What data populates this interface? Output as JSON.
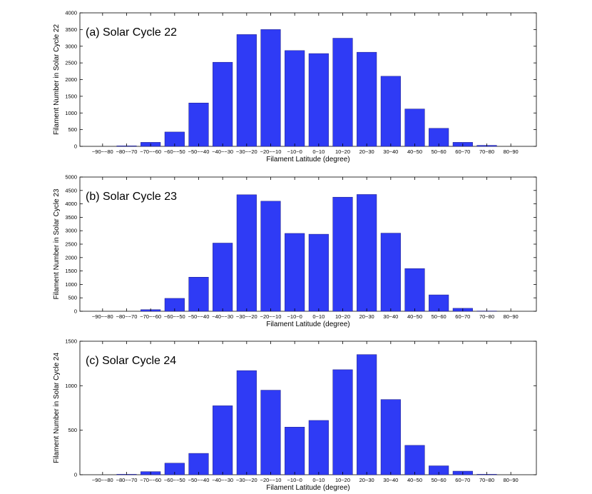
{
  "chart_data": [
    {
      "type": "bar",
      "title": "(a) Solar Cycle 22",
      "xlabel": "Filament Latitude (degree)",
      "ylabel": "Filament Number in Solar Cycle 22",
      "ylim": [
        0,
        4000
      ],
      "yticks": [
        0,
        500,
        1000,
        1500,
        2000,
        2500,
        3000,
        3500,
        4000
      ],
      "categories": [
        "-90--80",
        "-80--70",
        "-70--60",
        "-60--50",
        "-50--40",
        "-40--30",
        "-30--20",
        "-20--10",
        "-10-0",
        "0-10",
        "10-20",
        "20-30",
        "30-40",
        "40-50",
        "50-60",
        "60-70",
        "70-80",
        "80-90"
      ],
      "values": [
        0,
        15,
        120,
        430,
        1300,
        2520,
        3350,
        3500,
        2870,
        2780,
        3240,
        2820,
        2100,
        1120,
        540,
        120,
        30,
        0
      ],
      "color": "#2f3bf5"
    },
    {
      "type": "bar",
      "title": "(b) Solar Cycle 23",
      "xlabel": "Filament Latitude (degree)",
      "ylabel": "Filament Number in Solar Cycle 23",
      "ylim": [
        0,
        5000
      ],
      "yticks": [
        0,
        500,
        1000,
        1500,
        2000,
        2500,
        3000,
        3500,
        4000,
        4500,
        5000
      ],
      "categories": [
        "-90--80",
        "-80--70",
        "-70--60",
        "-60--50",
        "-50--40",
        "-40--30",
        "-30--20",
        "-20--10",
        "-10-0",
        "0-10",
        "10-20",
        "20-30",
        "30-40",
        "40-50",
        "50-60",
        "60-70",
        "70-80",
        "80-90"
      ],
      "values": [
        0,
        5,
        60,
        480,
        1270,
        2540,
        4340,
        4100,
        2900,
        2870,
        4250,
        4350,
        2910,
        1590,
        610,
        110,
        10,
        0
      ],
      "color": "#2f3bf5"
    },
    {
      "type": "bar",
      "title": "(c) Solar Cycle 24",
      "xlabel": "Filament Latitude (degree)",
      "ylabel": "Filament Number in Solar Cycle 24",
      "ylim": [
        0,
        1500
      ],
      "yticks": [
        0,
        500,
        1000,
        1500
      ],
      "categories": [
        "-90--80",
        "-80--70",
        "-70--60",
        "-60--50",
        "-50--40",
        "-40--30",
        "-30--20",
        "-20--10",
        "-10-0",
        "0-10",
        "10-20",
        "20-30",
        "30-40",
        "40-50",
        "50-60",
        "60-70",
        "70-80",
        "80-90"
      ],
      "values": [
        0,
        5,
        35,
        130,
        240,
        775,
        1170,
        950,
        535,
        610,
        1180,
        1350,
        845,
        330,
        100,
        40,
        5,
        0
      ],
      "color": "#2f3bf5"
    }
  ],
  "tick_labels": [
    "−90~−80",
    "−80~−70",
    "−70~−60",
    "−60~−50",
    "−50~−40",
    "−40~−30",
    "−30~−20",
    "−20~−10",
    "−10~0",
    "0~10",
    "10~20",
    "20~30",
    "30~40",
    "40~50",
    "50~60",
    "60~70",
    "70~80",
    "80~90"
  ]
}
